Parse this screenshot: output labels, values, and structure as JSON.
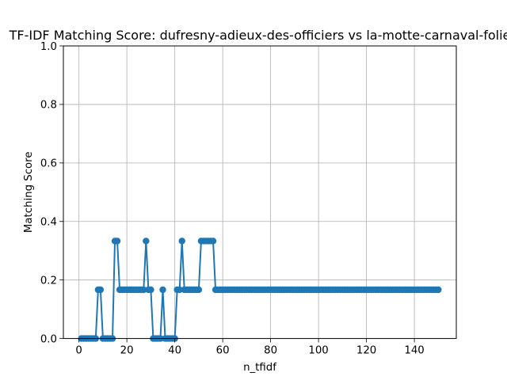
{
  "chart_data": {
    "type": "line",
    "title": "TF-IDF Matching Score: dufresny-adieux-des-officiers vs la-motte-carnaval-folie",
    "xlabel": "n_tfidf",
    "ylabel": "Matching Score",
    "xlim": [
      -6.5,
      157.5
    ],
    "ylim": [
      0,
      1.0
    ],
    "xticks": [
      0,
      20,
      40,
      60,
      80,
      100,
      120,
      140
    ],
    "yticks": [
      0.0,
      0.2,
      0.4,
      0.6,
      0.8,
      1.0
    ],
    "ytick_labels": [
      "0.0",
      "0.2",
      "0.4",
      "0.6",
      "0.8",
      "1.0"
    ],
    "grid": true,
    "marker": "circle",
    "series": [
      {
        "color": "#1f77b4",
        "x_start": 1,
        "x_end": 150,
        "y": [
          0,
          0,
          0,
          0,
          0,
          0,
          0,
          0.1667,
          0.1667,
          0,
          0,
          0,
          0,
          0,
          0.3333,
          0.3333,
          0.1667,
          0.1667,
          0.1667,
          0.1667,
          0.1667,
          0.1667,
          0.1667,
          0.1667,
          0.1667,
          0.1667,
          0.1667,
          0.3333,
          0.1667,
          0.1667,
          0,
          0,
          0,
          0,
          0.1667,
          0,
          0,
          0,
          0,
          0,
          0.1667,
          0.1667,
          0.3333,
          0.1667,
          0.1667,
          0.1667,
          0.1667,
          0.1667,
          0.1667,
          0.1667,
          0.3333,
          0.3333,
          0.3333,
          0.3333,
          0.3333,
          0.3333,
          0.1667,
          0.1667,
          0.1667,
          0.1667,
          0.1667,
          0.1667,
          0.1667,
          0.1667,
          0.1667,
          0.1667,
          0.1667,
          0.1667,
          0.1667,
          0.1667,
          0.1667,
          0.1667,
          0.1667,
          0.1667,
          0.1667,
          0.1667,
          0.1667,
          0.1667,
          0.1667,
          0.1667,
          0.1667,
          0.1667,
          0.1667,
          0.1667,
          0.1667,
          0.1667,
          0.1667,
          0.1667,
          0.1667,
          0.1667,
          0.1667,
          0.1667,
          0.1667,
          0.1667,
          0.1667,
          0.1667,
          0.1667,
          0.1667,
          0.1667,
          0.1667,
          0.1667,
          0.1667,
          0.1667,
          0.1667,
          0.1667,
          0.1667,
          0.1667,
          0.1667,
          0.1667,
          0.1667,
          0.1667,
          0.1667,
          0.1667,
          0.1667,
          0.1667,
          0.1667,
          0.1667,
          0.1667,
          0.1667,
          0.1667,
          0.1667,
          0.1667,
          0.1667,
          0.1667,
          0.1667,
          0.1667,
          0.1667,
          0.1667,
          0.1667,
          0.1667,
          0.1667,
          0.1667,
          0.1667,
          0.1667,
          0.1667,
          0.1667,
          0.1667,
          0.1667,
          0.1667,
          0.1667,
          0.1667,
          0.1667,
          0.1667,
          0.1667,
          0.1667,
          0.1667,
          0.1667,
          0.1667,
          0.1667,
          0.1667
        ]
      }
    ]
  }
}
